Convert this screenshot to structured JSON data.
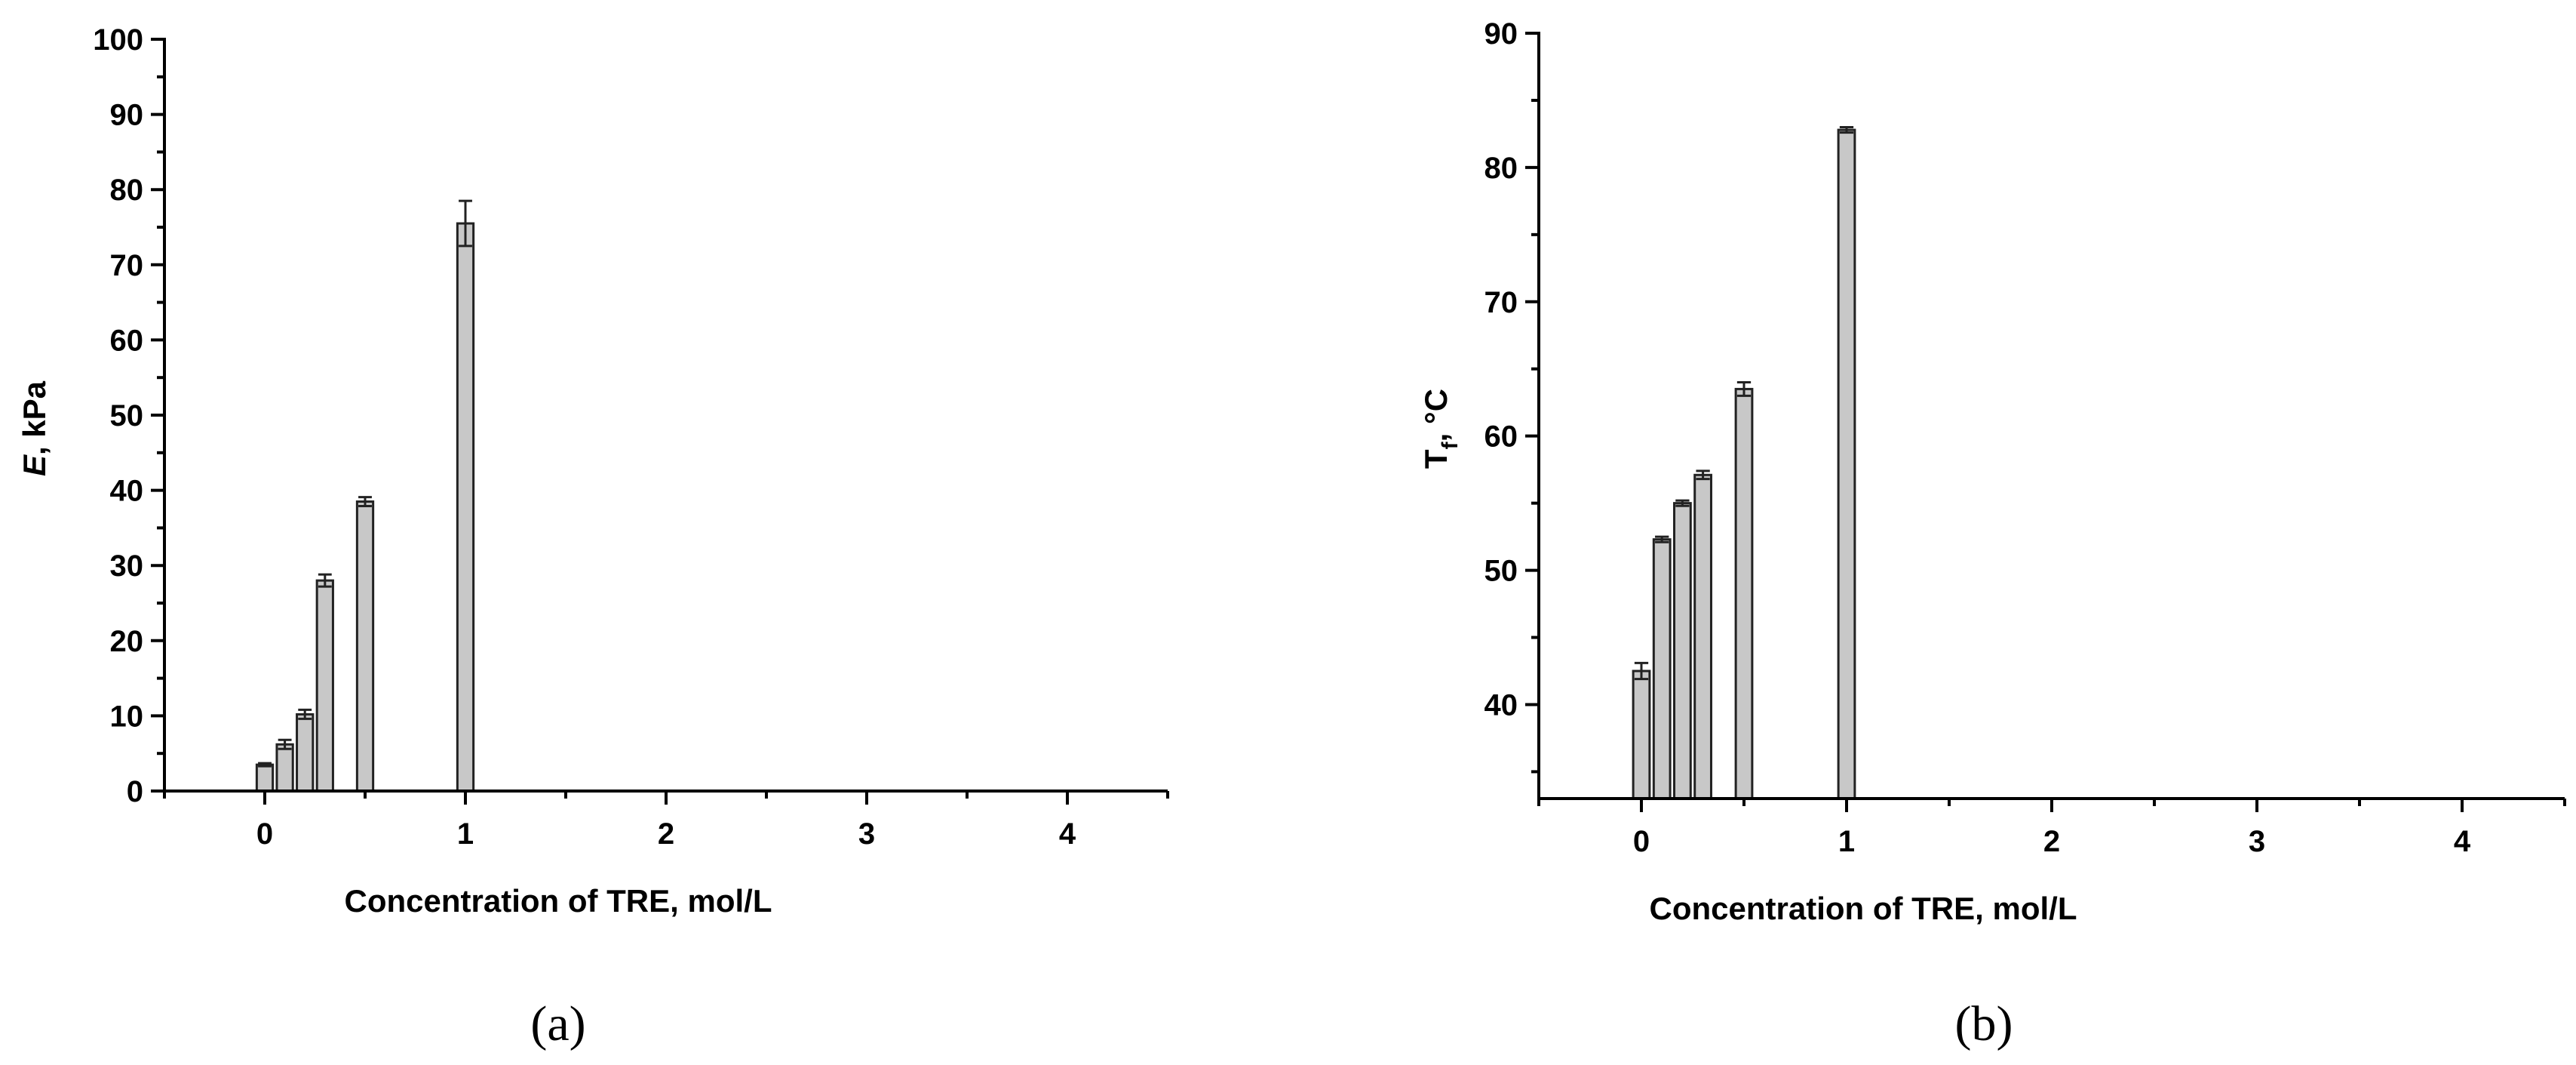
{
  "colors": {
    "bar_fill": "#c8c8c8",
    "bar_edge": "#222222",
    "axis": "#000000"
  },
  "chart_data": [
    {
      "type": "bar",
      "panel_label": "(a)",
      "xlabel": "Concentration of TRE, mol/L",
      "ylabel": "E, kPa",
      "ylabel_main": "E",
      "ylabel_rest": ", kPa",
      "xlim": [
        -0.5,
        4.5
      ],
      "ylim": [
        0,
        100
      ],
      "xticks": [
        0,
        1,
        2,
        3,
        4
      ],
      "yticks": [
        0,
        10,
        20,
        30,
        40,
        50,
        60,
        70,
        80,
        90,
        100
      ],
      "bar_width": 0.08,
      "grid": false,
      "x": [
        0,
        0.1,
        0.2,
        0.3,
        0.5,
        1.0
      ],
      "values": [
        3.5,
        6.2,
        10.2,
        28.0,
        38.5,
        75.5
      ],
      "errors": [
        0.2,
        0.6,
        0.6,
        0.8,
        0.6,
        3.0
      ]
    },
    {
      "type": "bar",
      "panel_label": "(b)",
      "xlabel": "Concentration of TRE, mol/L",
      "ylabel": "Tf, °C",
      "ylabel_main": "T",
      "ylabel_sub": "f",
      "ylabel_rest": ", °C",
      "xlim": [
        -0.5,
        4.5
      ],
      "ylim": [
        33,
        90
      ],
      "xticks": [
        0,
        1,
        2,
        3,
        4
      ],
      "yticks": [
        40,
        50,
        60,
        70,
        80,
        90
      ],
      "bar_width": 0.08,
      "grid": false,
      "x": [
        0,
        0.1,
        0.2,
        0.3,
        0.5,
        1.0
      ],
      "values": [
        42.5,
        52.3,
        55.0,
        57.1,
        63.5,
        82.8
      ],
      "errors": [
        0.6,
        0.2,
        0.2,
        0.3,
        0.5,
        0.2
      ]
    }
  ]
}
